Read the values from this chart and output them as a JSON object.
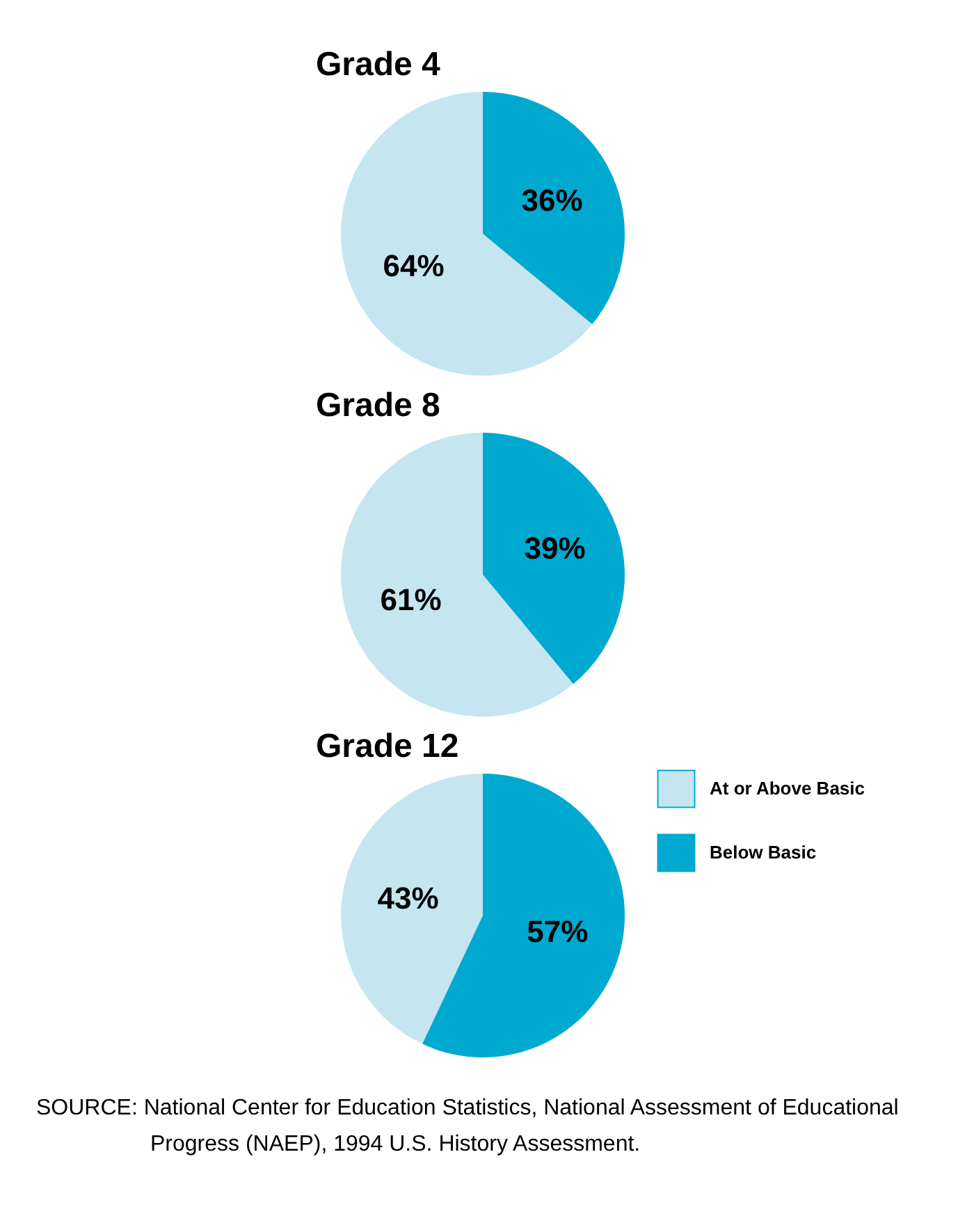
{
  "chart_data": [
    {
      "type": "pie",
      "title": "Grade 4",
      "categories": [
        null,
        null
      ],
      "values": [
        64,
        36
      ],
      "colors": [
        "#c5e5f1",
        "#00a9d0"
      ],
      "value_labels": [
        "64%",
        "36%"
      ],
      "legend": false
    },
    {
      "type": "pie",
      "title": "Grade 8",
      "categories": [
        null,
        null
      ],
      "values": [
        61,
        39
      ],
      "colors": [
        "#c5e5f1",
        "#00a9d0"
      ],
      "value_labels": [
        "61%",
        "39%"
      ],
      "legend": false
    },
    {
      "type": "pie",
      "title": "Grade 12",
      "categories": [
        "At or Above Basic",
        "Below Basic"
      ],
      "values": [
        43,
        57
      ],
      "colors": [
        "#c5e5f1",
        "#00a9d0"
      ],
      "value_labels": [
        "43%",
        "57%"
      ],
      "legend": "top right",
      "annotations": [
        "SOURCE: National Center for Education Statistics, National Assessment of Educational Progress (NAEP), 1994 U.S. History Assessment."
      ]
    }
  ]
}
